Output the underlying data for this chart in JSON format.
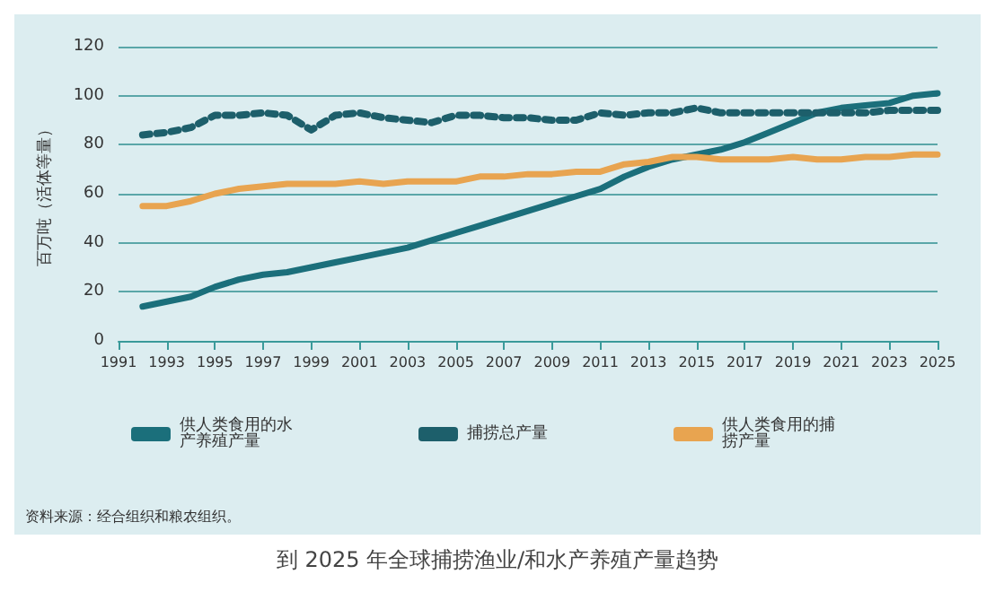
{
  "chart_data": {
    "type": "line",
    "title": "到 2025 年全球捕捞渔业/和水产养殖产量趋势",
    "ylabel": "百万吨（活体等量）",
    "x": [
      1992,
      1993,
      1994,
      1995,
      1996,
      1997,
      1998,
      1999,
      2000,
      2001,
      2002,
      2003,
      2004,
      2005,
      2006,
      2007,
      2008,
      2009,
      2010,
      2011,
      2012,
      2013,
      2014,
      2015,
      2016,
      2017,
      2018,
      2019,
      2020,
      2021,
      2022,
      2023,
      2024,
      2025
    ],
    "series": [
      {
        "name": "供人类食用的水产养殖产量",
        "color": "#1b6f7b",
        "line_style": "solid",
        "values": [
          14,
          16,
          18,
          22,
          25,
          27,
          28,
          30,
          32,
          34,
          36,
          38,
          41,
          44,
          47,
          50,
          53,
          56,
          59,
          62,
          67,
          71,
          74,
          76,
          78,
          81,
          85,
          89,
          93,
          95,
          96,
          97,
          100,
          101
        ]
      },
      {
        "name": "捕捞总产量",
        "color": "#1d5f6b",
        "line_style": "dotted",
        "values": [
          84,
          85,
          87,
          92,
          92,
          93,
          92,
          86,
          92,
          93,
          91,
          90,
          89,
          92,
          92,
          91,
          91,
          90,
          90,
          93,
          92,
          93,
          93,
          95,
          93,
          93,
          93,
          93,
          93,
          93,
          93,
          94,
          94,
          94
        ]
      },
      {
        "name": "供人类食用的捕捞产量",
        "color": "#e8a450",
        "line_style": "solid",
        "values": [
          55,
          55,
          57,
          60,
          62,
          63,
          64,
          64,
          64,
          65,
          64,
          65,
          65,
          65,
          67,
          67,
          68,
          68,
          69,
          69,
          72,
          73,
          75,
          75,
          74,
          74,
          74,
          75,
          74,
          74,
          75,
          75,
          76,
          76
        ]
      }
    ],
    "xlim": [
      1991,
      2025
    ],
    "xticks": [
      1991,
      1993,
      1995,
      1997,
      1999,
      2001,
      2003,
      2005,
      2007,
      2009,
      2011,
      2013,
      2015,
      2017,
      2019,
      2021,
      2023,
      2025
    ],
    "ylim": [
      0,
      120
    ],
    "yticks": [
      0,
      20,
      40,
      60,
      80,
      100,
      120
    ],
    "grid": "y",
    "legend": "bottom",
    "marker": "none",
    "annotations": [
      "资料来源：经合组织和粮农组织。"
    ]
  }
}
